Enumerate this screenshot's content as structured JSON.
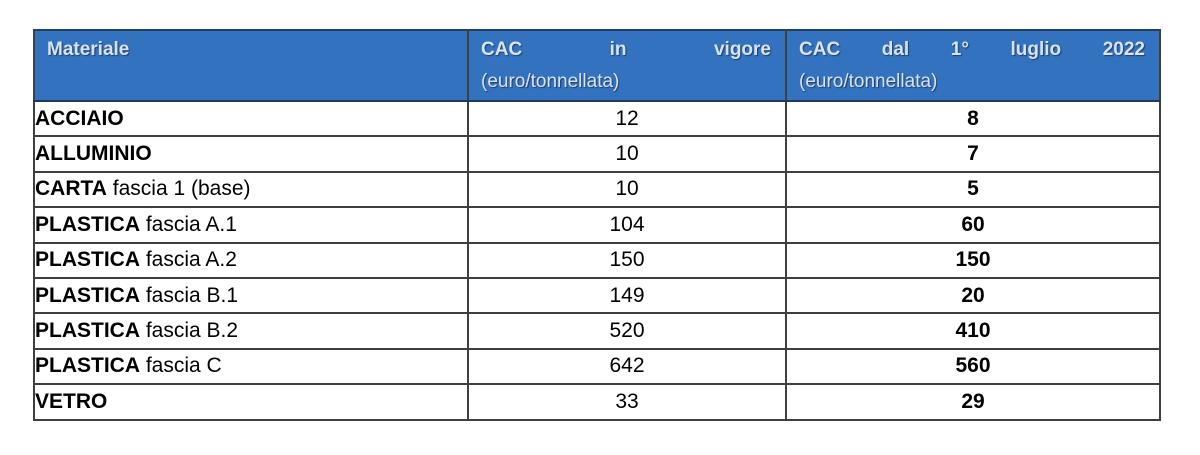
{
  "table": {
    "header": {
      "materiale": "Materiale",
      "col2_words": [
        "CAC",
        "in",
        "vigore"
      ],
      "col3_words": [
        "CAC",
        "dal",
        "1°",
        "luglio",
        "2022"
      ],
      "unit": "(euro/tonnellata)"
    },
    "rows": [
      {
        "material": "ACCIAIO",
        "detail": "",
        "cac_in_vigore": "12",
        "cac_dal_1_luglio_2022": "8"
      },
      {
        "material": "ALLUMINIO",
        "detail": "",
        "cac_in_vigore": "10",
        "cac_dal_1_luglio_2022": "7"
      },
      {
        "material": "CARTA",
        "detail": "fascia 1 (base)",
        "cac_in_vigore": "10",
        "cac_dal_1_luglio_2022": "5"
      },
      {
        "material": "PLASTICA",
        "detail": "fascia A.1",
        "cac_in_vigore": "104",
        "cac_dal_1_luglio_2022": "60"
      },
      {
        "material": "PLASTICA",
        "detail": "fascia A.2",
        "cac_in_vigore": "150",
        "cac_dal_1_luglio_2022": "150"
      },
      {
        "material": "PLASTICA",
        "detail": "fascia B.1",
        "cac_in_vigore": "149",
        "cac_dal_1_luglio_2022": "20"
      },
      {
        "material": "PLASTICA",
        "detail": "fascia B.2",
        "cac_in_vigore": "520",
        "cac_dal_1_luglio_2022": "410"
      },
      {
        "material": "PLASTICA",
        "detail": "fascia C",
        "cac_in_vigore": "642",
        "cac_dal_1_luglio_2022": "560"
      },
      {
        "material": "VETRO",
        "detail": "",
        "cac_in_vigore": "33",
        "cac_dal_1_luglio_2022": "29"
      }
    ]
  },
  "colors": {
    "header_bg": "#3372BE",
    "header_text": "#D9E2F1",
    "border": "#3F3F3F",
    "row_text": "#000000"
  }
}
